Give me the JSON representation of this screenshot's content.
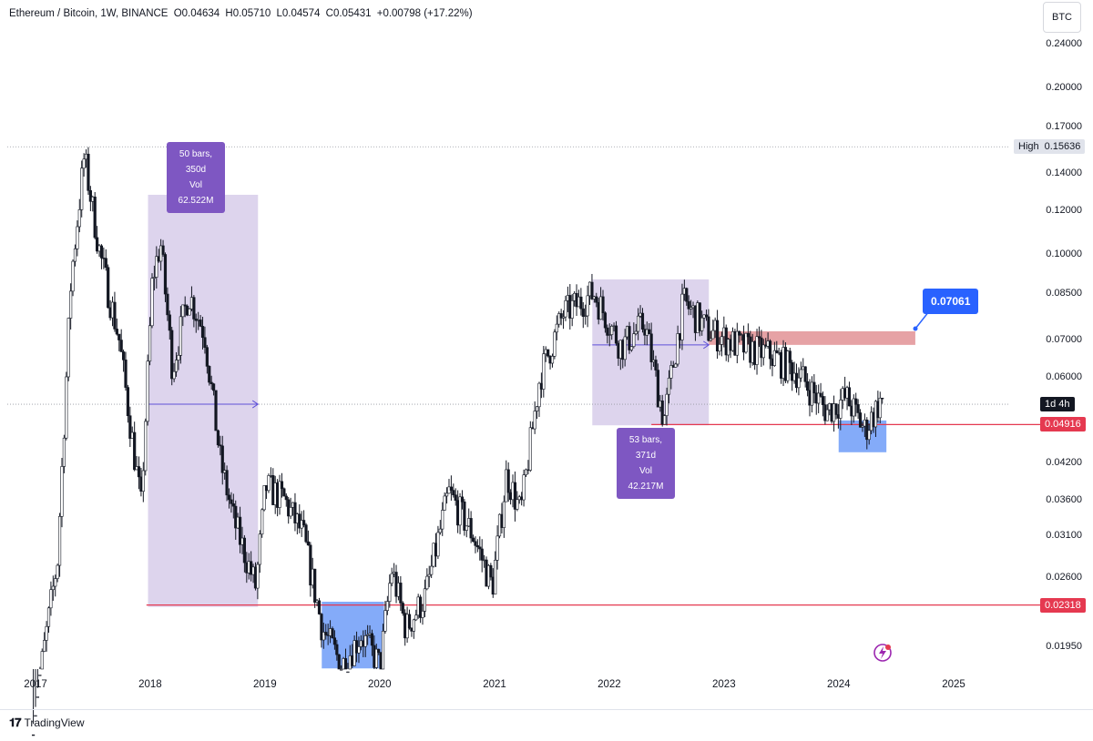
{
  "legend": {
    "pair": "Ethereum / Bitcoin, 1W, BINANCE",
    "open": "O0.04634",
    "high": "H0.05710",
    "low": "L0.04574",
    "close": "C0.05431",
    "change": "+0.00798 (+17.22%)"
  },
  "currency_button": "BTC",
  "high_marker": {
    "label": "High",
    "value": "0.15636"
  },
  "countdown": "1d 4h",
  "support_top_label": "0.04916",
  "support_bottom_label": "0.02318",
  "callout_label": "0.07061",
  "measure_1": {
    "bars": "50 bars, 350d",
    "vol": "Vol 62.522M"
  },
  "measure_2": {
    "bars": "53 bars, 371d",
    "vol": "Vol 42.217M"
  },
  "footer": {
    "brand": "TradingView"
  },
  "colors": {
    "up": "#ffffff",
    "down": "#131722",
    "red_line": "#e53950",
    "red_zone": "#e08b8f",
    "blue_zone": "#6f9cf8",
    "purple_zone": "#d7cdea",
    "accent_blue": "#2962ff",
    "measure_purple": "#7e57c2"
  },
  "chart_data": {
    "type": "candlestick",
    "scale": "log",
    "ylim": [
      0.0175,
      0.255
    ],
    "x_ticks": [
      "2017",
      "2018",
      "2019",
      "2020",
      "2021",
      "2022",
      "2023",
      "2024",
      "2025"
    ],
    "y_ticks": [
      "0.24000",
      "0.20000",
      "0.17000",
      "0.14000",
      "0.12000",
      "0.10000",
      "0.08500",
      "0.07000",
      "0.06000",
      "0.04200",
      "0.03600",
      "0.03100",
      "0.02600",
      "0.01950"
    ],
    "trajectory": [
      {
        "date": "2016-12-25",
        "close": 0.0135
      },
      {
        "date": "2017-03-19",
        "close": 0.028
      },
      {
        "date": "2017-05-01",
        "close": 0.09
      },
      {
        "date": "2017-06-12",
        "close": 0.15
      },
      {
        "date": "2017-08-01",
        "close": 0.1
      },
      {
        "date": "2017-10-01",
        "close": 0.07
      },
      {
        "date": "2017-12-10",
        "close": 0.035
      },
      {
        "date": "2018-01-15",
        "close": 0.09
      },
      {
        "date": "2018-02-10",
        "close": 0.105
      },
      {
        "date": "2018-03-20",
        "close": 0.062
      },
      {
        "date": "2018-05-10",
        "close": 0.085
      },
      {
        "date": "2018-06-30",
        "close": 0.072
      },
      {
        "date": "2018-08-20",
        "close": 0.042
      },
      {
        "date": "2018-10-01",
        "close": 0.033
      },
      {
        "date": "2018-12-10",
        "close": 0.025
      },
      {
        "date": "2019-01-10",
        "close": 0.038
      },
      {
        "date": "2019-03-10",
        "close": 0.036
      },
      {
        "date": "2019-05-10",
        "close": 0.031
      },
      {
        "date": "2019-07-10",
        "close": 0.021
      },
      {
        "date": "2019-09-10",
        "close": 0.018
      },
      {
        "date": "2019-11-10",
        "close": 0.0205
      },
      {
        "date": "2020-01-10",
        "close": 0.018
      },
      {
        "date": "2020-02-15",
        "close": 0.027
      },
      {
        "date": "2020-04-01",
        "close": 0.021
      },
      {
        "date": "2020-06-01",
        "close": 0.024
      },
      {
        "date": "2020-08-15",
        "close": 0.037
      },
      {
        "date": "2020-11-01",
        "close": 0.031
      },
      {
        "date": "2021-01-01",
        "close": 0.025
      },
      {
        "date": "2021-02-15",
        "close": 0.04
      },
      {
        "date": "2021-04-01",
        "close": 0.034
      },
      {
        "date": "2021-06-01",
        "close": 0.06
      },
      {
        "date": "2021-08-15",
        "close": 0.078
      },
      {
        "date": "2021-11-20",
        "close": 0.085
      },
      {
        "date": "2022-02-15",
        "close": 0.068
      },
      {
        "date": "2022-05-01",
        "close": 0.075
      },
      {
        "date": "2022-07-01",
        "close": 0.05
      },
      {
        "date": "2022-09-01",
        "close": 0.082
      },
      {
        "date": "2022-11-15",
        "close": 0.073
      },
      {
        "date": "2023-03-01",
        "close": 0.068
      },
      {
        "date": "2023-06-01",
        "close": 0.066
      },
      {
        "date": "2023-09-01",
        "close": 0.061
      },
      {
        "date": "2023-12-01",
        "close": 0.052
      },
      {
        "date": "2024-02-01",
        "close": 0.055
      },
      {
        "date": "2024-04-01",
        "close": 0.048
      },
      {
        "date": "2024-05-20",
        "close": 0.05431
      }
    ],
    "horizontal_levels": [
      {
        "value": 0.04916,
        "color": "#e53950"
      },
      {
        "value": 0.02318,
        "color": "#e53950"
      },
      {
        "value": 0.15636,
        "style": "dotted"
      },
      {
        "value": 0.0535,
        "style": "dotted"
      }
    ],
    "zones": [
      {
        "type": "date_range_measure",
        "from": "2017-12-25",
        "to": "2018-12-10",
        "low": 0.023,
        "high": 0.128
      },
      {
        "type": "date_range_measure",
        "from": "2021-11-08",
        "to": "2022-11-14",
        "low": 0.049,
        "high": 0.09
      },
      {
        "type": "resistance",
        "from": "2022-11-14",
        "to": "2024-09-01",
        "low": 0.0685,
        "high": 0.0725
      },
      {
        "type": "demand",
        "from": "2024-01-01",
        "to": "2024-06-01",
        "low": 0.0438,
        "high": 0.05
      },
      {
        "type": "demand",
        "from": "2019-07-01",
        "to": "2020-01-15",
        "low": 0.0178,
        "high": 0.0235
      }
    ]
  }
}
